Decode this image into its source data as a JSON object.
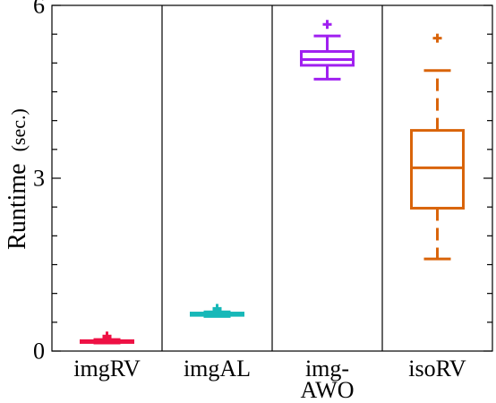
{
  "chart_data": {
    "type": "box",
    "ylabel": "Runtime",
    "ylabel_unit": "(sec.)",
    "ylim": [
      0,
      6
    ],
    "yticks_major": [
      0,
      3,
      6
    ],
    "ytick_labels": [
      "0",
      "3",
      "6"
    ],
    "yticks_minor_step": 0.5,
    "grid": false,
    "categories": [
      {
        "label_lines": [
          "imgRV"
        ],
        "color": "#ee1144",
        "whisker_low": 0.14,
        "q1": 0.16,
        "median": 0.17,
        "q3": 0.18,
        "whisker_high": 0.2,
        "outliers": [
          0.22,
          0.26
        ]
      },
      {
        "label_lines": [
          "imgAL"
        ],
        "color": "#17b8b8",
        "whisker_low": 0.6,
        "q1": 0.62,
        "median": 0.64,
        "q3": 0.66,
        "whisker_high": 0.68,
        "outliers": [
          0.7,
          0.74
        ]
      },
      {
        "label_lines": [
          "img-",
          "AWO"
        ],
        "color": "#a020f0",
        "whisker_low": 4.72,
        "q1": 4.96,
        "median": 5.06,
        "q3": 5.2,
        "whisker_high": 5.47,
        "outliers": [
          5.67
        ]
      },
      {
        "label_lines": [
          "isoRV"
        ],
        "color": "#d9640a",
        "whisker_low": 1.6,
        "q1": 2.48,
        "median": 3.18,
        "q3": 3.83,
        "whisker_high": 4.87,
        "outliers": [
          5.43
        ]
      }
    ]
  }
}
